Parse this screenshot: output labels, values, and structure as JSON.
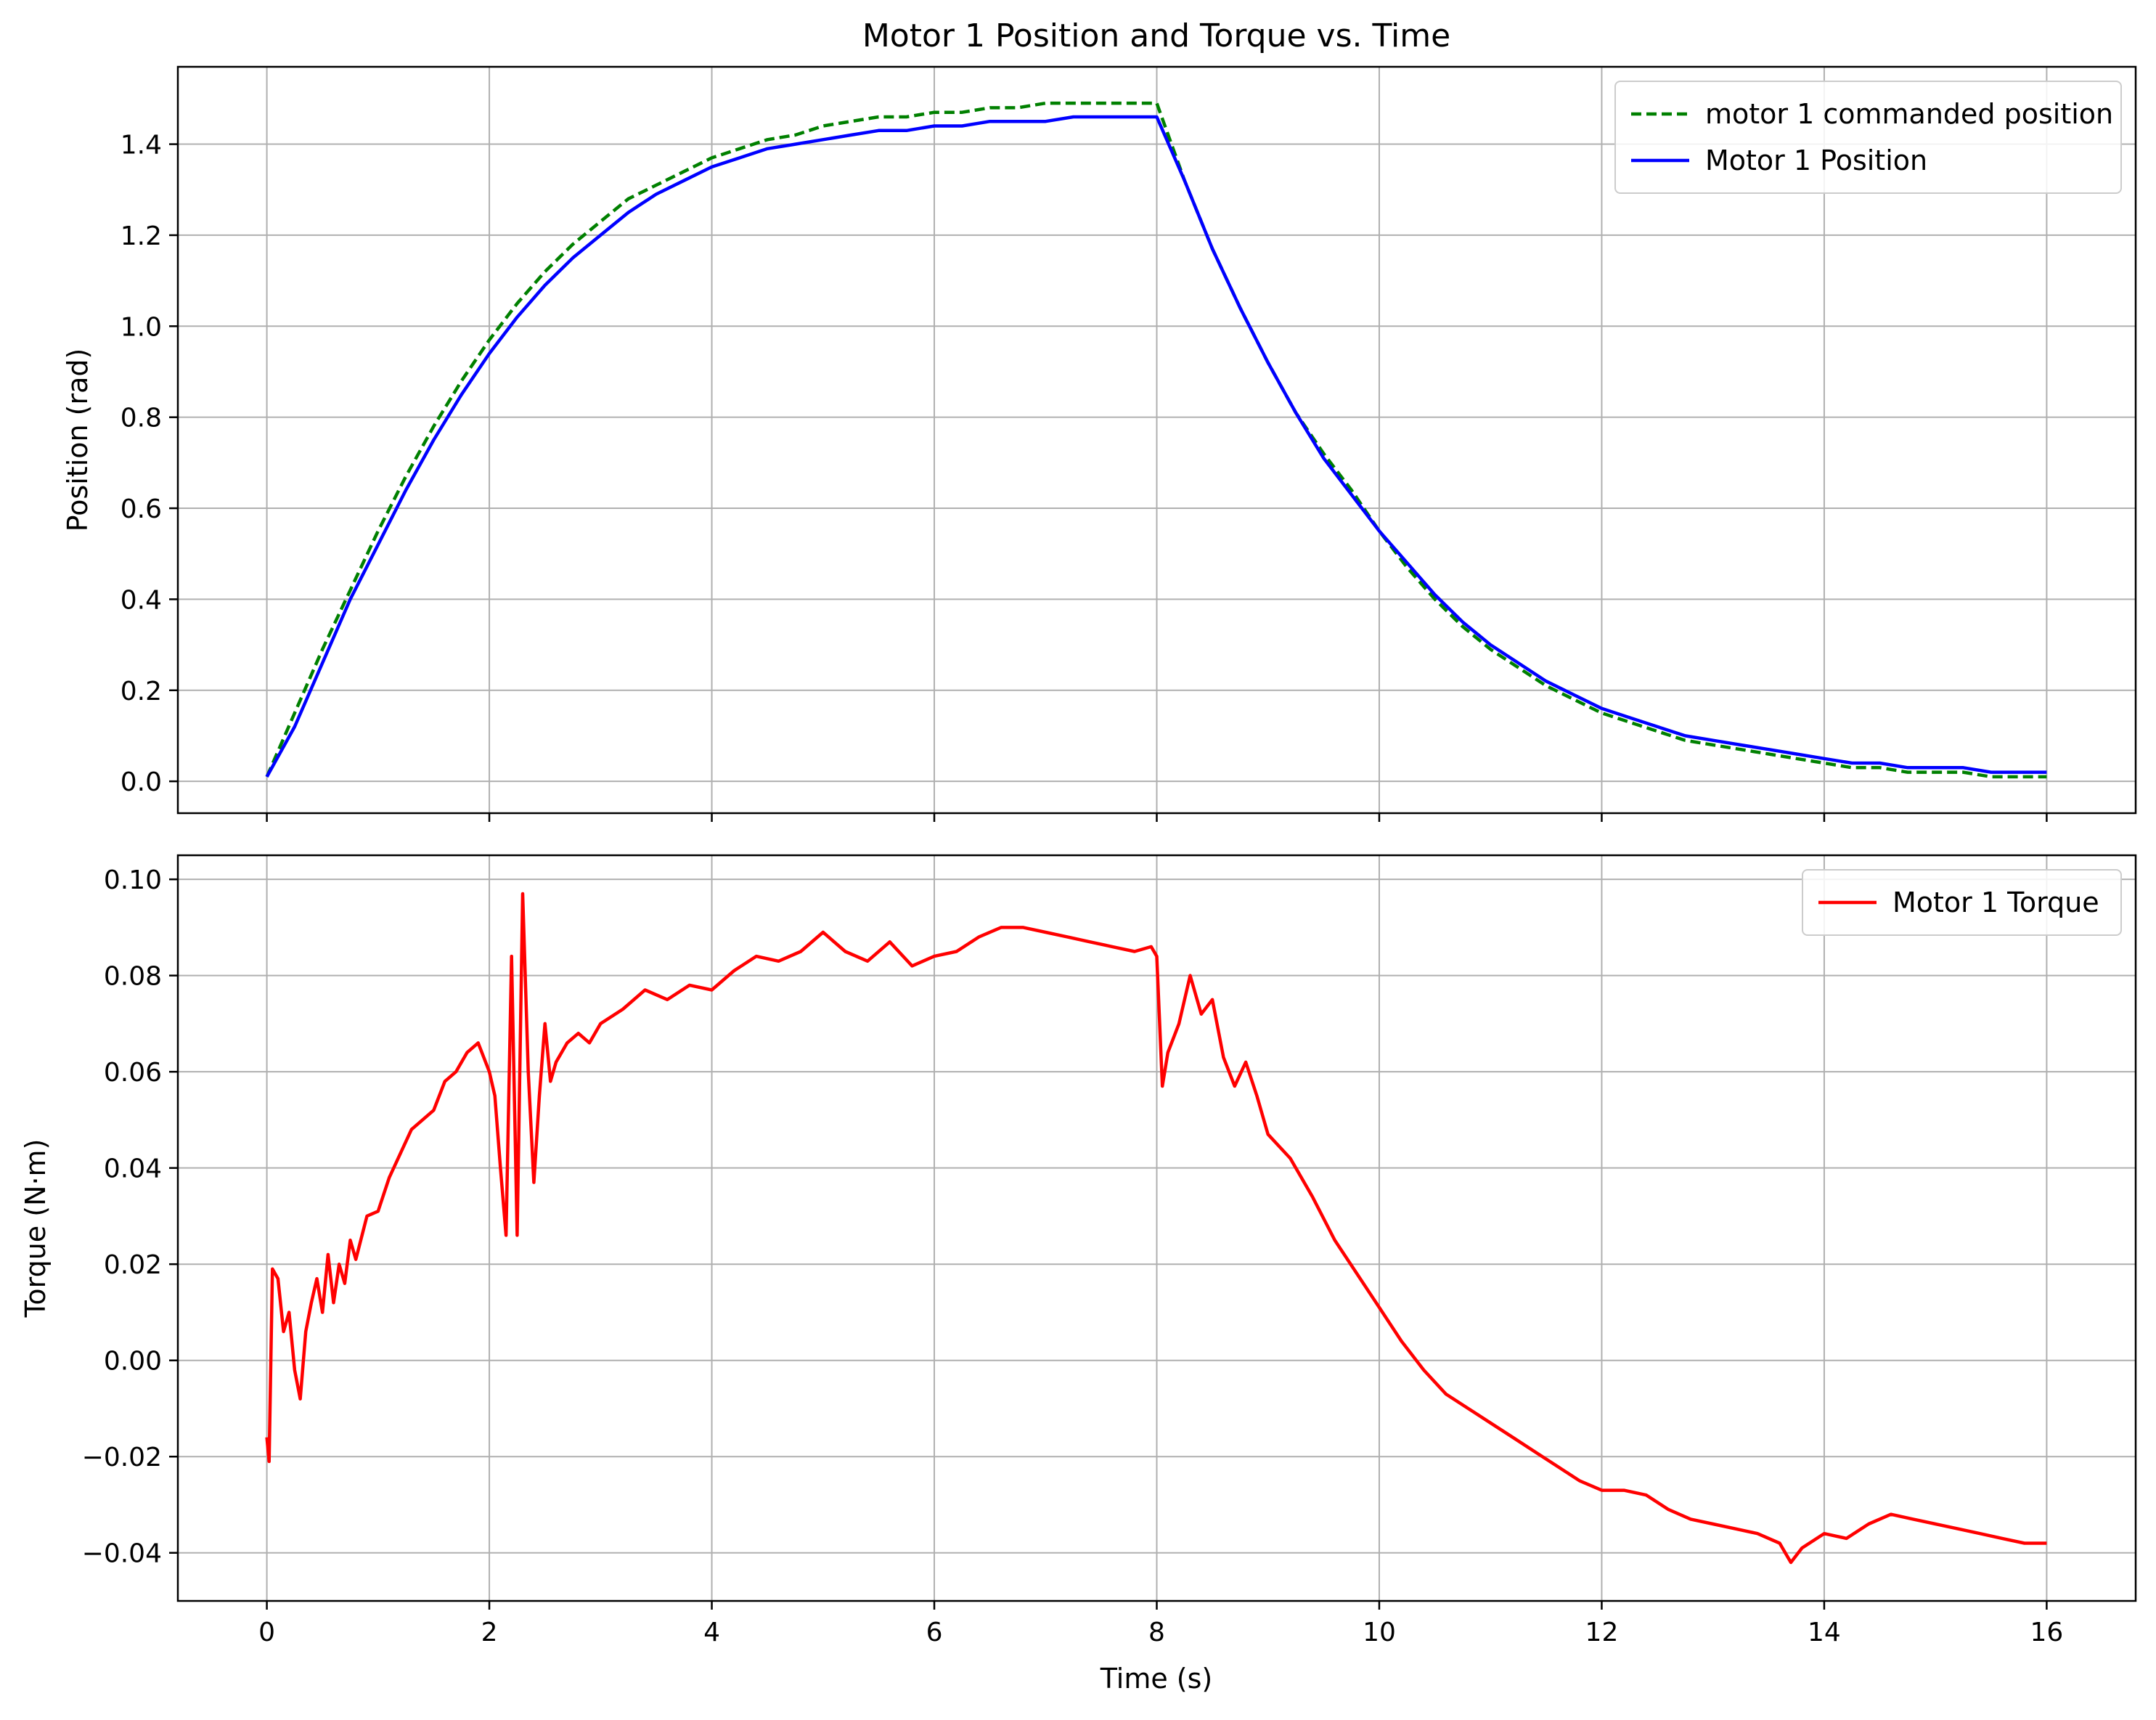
{
  "chart_data": {
    "title": "Motor 1 Position and Torque vs. Time",
    "shared_x": {
      "xlabel": "Time (s)",
      "xlim": [
        -0.8,
        16.8
      ],
      "ticks": [
        0,
        2,
        4,
        6,
        8,
        10,
        12,
        14,
        16
      ],
      "tick_labels": [
        "0",
        "2",
        "4",
        "6",
        "8",
        "10",
        "12",
        "14",
        "16"
      ]
    },
    "subplots": [
      {
        "type": "line",
        "ylabel": "Position (rad)",
        "ylim": [
          -0.07,
          1.57
        ],
        "y_ticks": [
          0.0,
          0.2,
          0.4,
          0.6,
          0.8,
          1.0,
          1.2,
          1.4
        ],
        "y_tick_labels": [
          "0.0",
          "0.2",
          "0.4",
          "0.6",
          "0.8",
          "1.0",
          "1.2",
          "1.4"
        ],
        "grid": true,
        "legend_position": "top-right",
        "series": [
          {
            "name": "motor 1 commanded position",
            "color": "#008000",
            "dash": "dashed",
            "x": [
              0,
              0.25,
              0.5,
              0.75,
              1,
              1.25,
              1.5,
              1.75,
              2,
              2.25,
              2.5,
              2.75,
              3,
              3.25,
              3.5,
              3.75,
              4,
              4.25,
              4.5,
              4.75,
              5,
              5.25,
              5.5,
              5.75,
              6,
              6.25,
              6.5,
              6.75,
              7,
              7.25,
              7.5,
              7.75,
              8,
              8.25,
              8.5,
              8.75,
              9,
              9.25,
              9.5,
              9.75,
              10,
              10.25,
              10.5,
              10.75,
              11,
              11.25,
              11.5,
              11.75,
              12,
              12.25,
              12.5,
              12.75,
              13,
              13.25,
              13.5,
              13.75,
              14,
              14.25,
              14.5,
              14.75,
              15,
              15.25,
              15.5,
              15.75,
              16
            ],
            "y": [
              0.01,
              0.15,
              0.29,
              0.42,
              0.55,
              0.67,
              0.78,
              0.88,
              0.97,
              1.05,
              1.12,
              1.18,
              1.23,
              1.28,
              1.31,
              1.34,
              1.37,
              1.39,
              1.41,
              1.42,
              1.44,
              1.45,
              1.46,
              1.46,
              1.47,
              1.47,
              1.48,
              1.48,
              1.49,
              1.49,
              1.49,
              1.49,
              1.49,
              1.32,
              1.17,
              1.04,
              0.92,
              0.81,
              0.72,
              0.64,
              0.55,
              0.47,
              0.4,
              0.34,
              0.29,
              0.25,
              0.21,
              0.18,
              0.15,
              0.13,
              0.11,
              0.09,
              0.08,
              0.07,
              0.06,
              0.05,
              0.04,
              0.03,
              0.03,
              0.02,
              0.02,
              0.02,
              0.01,
              0.01,
              0.01
            ]
          },
          {
            "name": "Motor 1 Position",
            "color": "#0000ff",
            "dash": "solid",
            "x": [
              0,
              0.25,
              0.5,
              0.75,
              1,
              1.25,
              1.5,
              1.75,
              2,
              2.25,
              2.5,
              2.75,
              3,
              3.25,
              3.5,
              3.75,
              4,
              4.25,
              4.5,
              4.75,
              5,
              5.25,
              5.5,
              5.75,
              6,
              6.25,
              6.5,
              6.75,
              7,
              7.25,
              7.5,
              7.75,
              8,
              8.25,
              8.5,
              8.75,
              9,
              9.25,
              9.5,
              9.75,
              10,
              10.25,
              10.5,
              10.75,
              11,
              11.25,
              11.5,
              11.75,
              12,
              12.25,
              12.5,
              12.75,
              13,
              13.25,
              13.5,
              13.75,
              14,
              14.25,
              14.5,
              14.75,
              15,
              15.25,
              15.5,
              15.75,
              16
            ],
            "y": [
              0.01,
              0.12,
              0.26,
              0.4,
              0.52,
              0.64,
              0.75,
              0.85,
              0.94,
              1.02,
              1.09,
              1.15,
              1.2,
              1.25,
              1.29,
              1.32,
              1.35,
              1.37,
              1.39,
              1.4,
              1.41,
              1.42,
              1.43,
              1.43,
              1.44,
              1.44,
              1.45,
              1.45,
              1.45,
              1.46,
              1.46,
              1.46,
              1.46,
              1.32,
              1.17,
              1.04,
              0.92,
              0.81,
              0.71,
              0.63,
              0.55,
              0.48,
              0.41,
              0.35,
              0.3,
              0.26,
              0.22,
              0.19,
              0.16,
              0.14,
              0.12,
              0.1,
              0.09,
              0.08,
              0.07,
              0.06,
              0.05,
              0.04,
              0.04,
              0.03,
              0.03,
              0.03,
              0.02,
              0.02,
              0.02
            ]
          }
        ]
      },
      {
        "type": "line",
        "ylabel": "Torque (N·m)",
        "ylim": [
          -0.05,
          0.105
        ],
        "y_ticks": [
          -0.04,
          -0.02,
          0.0,
          0.02,
          0.04,
          0.06,
          0.08,
          0.1
        ],
        "y_tick_labels": [
          "−0.04",
          "−0.02",
          "0.00",
          "0.02",
          "0.04",
          "0.06",
          "0.08",
          "0.10"
        ],
        "grid": true,
        "legend_position": "top-right",
        "series": [
          {
            "name": "Motor 1 Torque",
            "color": "#ff0000",
            "dash": "solid",
            "x": [
              0,
              0.02,
              0.05,
              0.1,
              0.15,
              0.2,
              0.25,
              0.3,
              0.35,
              0.4,
              0.45,
              0.5,
              0.55,
              0.6,
              0.65,
              0.7,
              0.75,
              0.8,
              0.9,
              1.0,
              1.1,
              1.2,
              1.3,
              1.4,
              1.5,
              1.6,
              1.7,
              1.8,
              1.9,
              2.0,
              2.05,
              2.1,
              2.15,
              2.2,
              2.25,
              2.3,
              2.35,
              2.4,
              2.45,
              2.5,
              2.55,
              2.6,
              2.7,
              2.8,
              2.9,
              3.0,
              3.2,
              3.4,
              3.6,
              3.8,
              4.0,
              4.2,
              4.4,
              4.6,
              4.8,
              5.0,
              5.2,
              5.4,
              5.6,
              5.8,
              6.0,
              6.2,
              6.4,
              6.6,
              6.8,
              7.0,
              7.2,
              7.4,
              7.6,
              7.8,
              7.95,
              8.0,
              8.05,
              8.1,
              8.2,
              8.3,
              8.4,
              8.5,
              8.6,
              8.7,
              8.8,
              8.9,
              9.0,
              9.2,
              9.4,
              9.6,
              9.8,
              10.0,
              10.2,
              10.4,
              10.6,
              10.8,
              11.0,
              11.2,
              11.4,
              11.6,
              11.8,
              12.0,
              12.2,
              12.4,
              12.6,
              12.8,
              13.0,
              13.2,
              13.4,
              13.6,
              13.7,
              13.8,
              14.0,
              14.2,
              14.4,
              14.6,
              14.8,
              15.0,
              15.2,
              15.4,
              15.6,
              15.8,
              16.0
            ],
            "y": [
              -0.016,
              -0.021,
              0.019,
              0.017,
              0.006,
              0.01,
              -0.002,
              -0.008,
              0.006,
              0.012,
              0.017,
              0.01,
              0.022,
              0.012,
              0.02,
              0.016,
              0.025,
              0.021,
              0.03,
              0.031,
              0.038,
              0.043,
              0.048,
              0.05,
              0.052,
              0.058,
              0.06,
              0.064,
              0.066,
              0.06,
              0.055,
              0.04,
              0.026,
              0.084,
              0.026,
              0.097,
              0.06,
              0.037,
              0.055,
              0.07,
              0.058,
              0.062,
              0.066,
              0.068,
              0.066,
              0.07,
              0.073,
              0.077,
              0.075,
              0.078,
              0.077,
              0.081,
              0.084,
              0.083,
              0.085,
              0.089,
              0.085,
              0.083,
              0.087,
              0.082,
              0.084,
              0.085,
              0.088,
              0.09,
              0.09,
              0.089,
              0.088,
              0.087,
              0.086,
              0.085,
              0.086,
              0.084,
              0.057,
              0.064,
              0.07,
              0.08,
              0.072,
              0.075,
              0.063,
              0.057,
              0.062,
              0.055,
              0.047,
              0.042,
              0.034,
              0.025,
              0.018,
              0.011,
              0.004,
              -0.002,
              -0.007,
              -0.01,
              -0.013,
              -0.016,
              -0.019,
              -0.022,
              -0.025,
              -0.027,
              -0.027,
              -0.028,
              -0.031,
              -0.033,
              -0.034,
              -0.035,
              -0.036,
              -0.038,
              -0.042,
              -0.039,
              -0.036,
              -0.037,
              -0.034,
              -0.032,
              -0.033,
              -0.034,
              -0.035,
              -0.036,
              -0.037,
              -0.038,
              -0.038
            ]
          }
        ]
      }
    ]
  }
}
